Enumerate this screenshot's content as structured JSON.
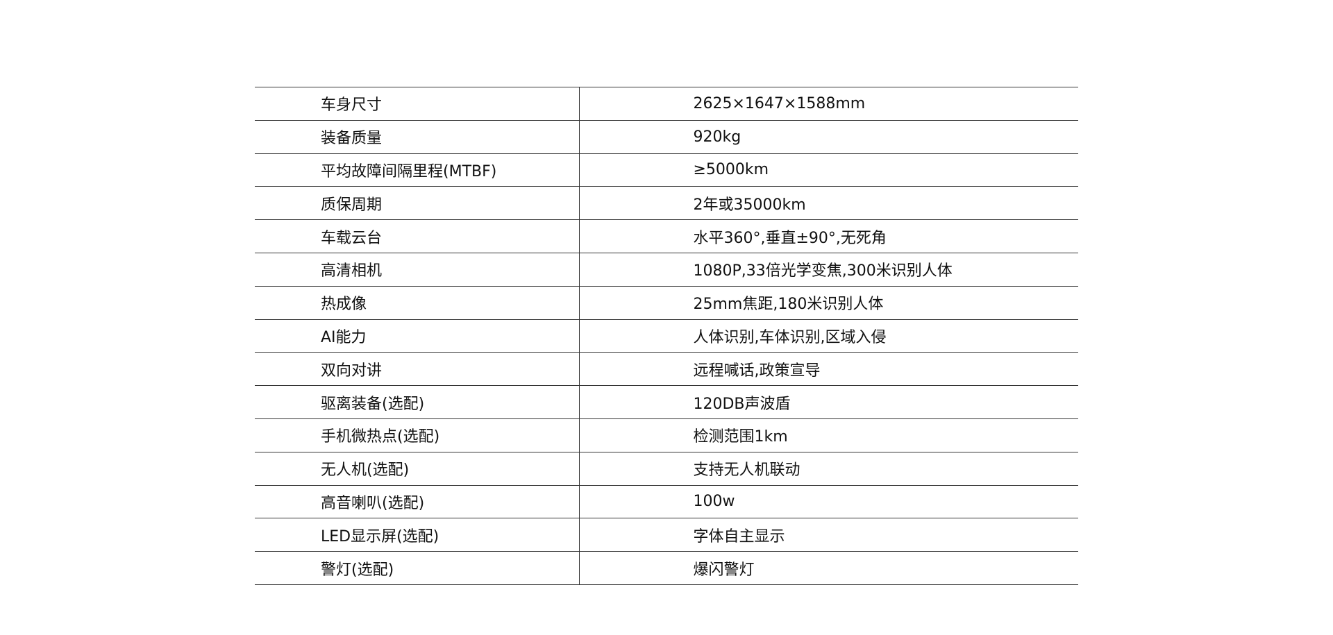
{
  "specs": [
    {
      "label": "车身尺寸",
      "value": "2625×1647×1588mm"
    },
    {
      "label": "装备质量",
      "value": "920kg"
    },
    {
      "label": "平均故障间隔里程(MTBF)",
      "value": "≥5000km"
    },
    {
      "label": "质保周期",
      "value": "2年或35000km"
    },
    {
      "label": "车载云台",
      "value": "水平360°,垂直±90°,无死角"
    },
    {
      "label": "高清相机",
      "value": "1080P,33倍光学变焦,300米识别人体"
    },
    {
      "label": "热成像",
      "value": "25mm焦距,180米识别人体"
    },
    {
      "label": "AI能力",
      "value": "人体识别,车体识别,区域入侵"
    },
    {
      "label": "双向对讲",
      "value": "远程喊话,政策宣导"
    },
    {
      "label": "驱离装备(选配)",
      "value": "120DB声波盾"
    },
    {
      "label": "手机微热点(选配)",
      "value": "检测范围1km"
    },
    {
      "label": "无人机(选配)",
      "value": "支持无人机联动"
    },
    {
      "label": "高音喇叭(选配)",
      "value": "100w"
    },
    {
      "label": "LED显示屏(选配)",
      "value": "字体自主显示"
    },
    {
      "label": "警灯(选配)",
      "value": "爆闪警灯"
    }
  ]
}
